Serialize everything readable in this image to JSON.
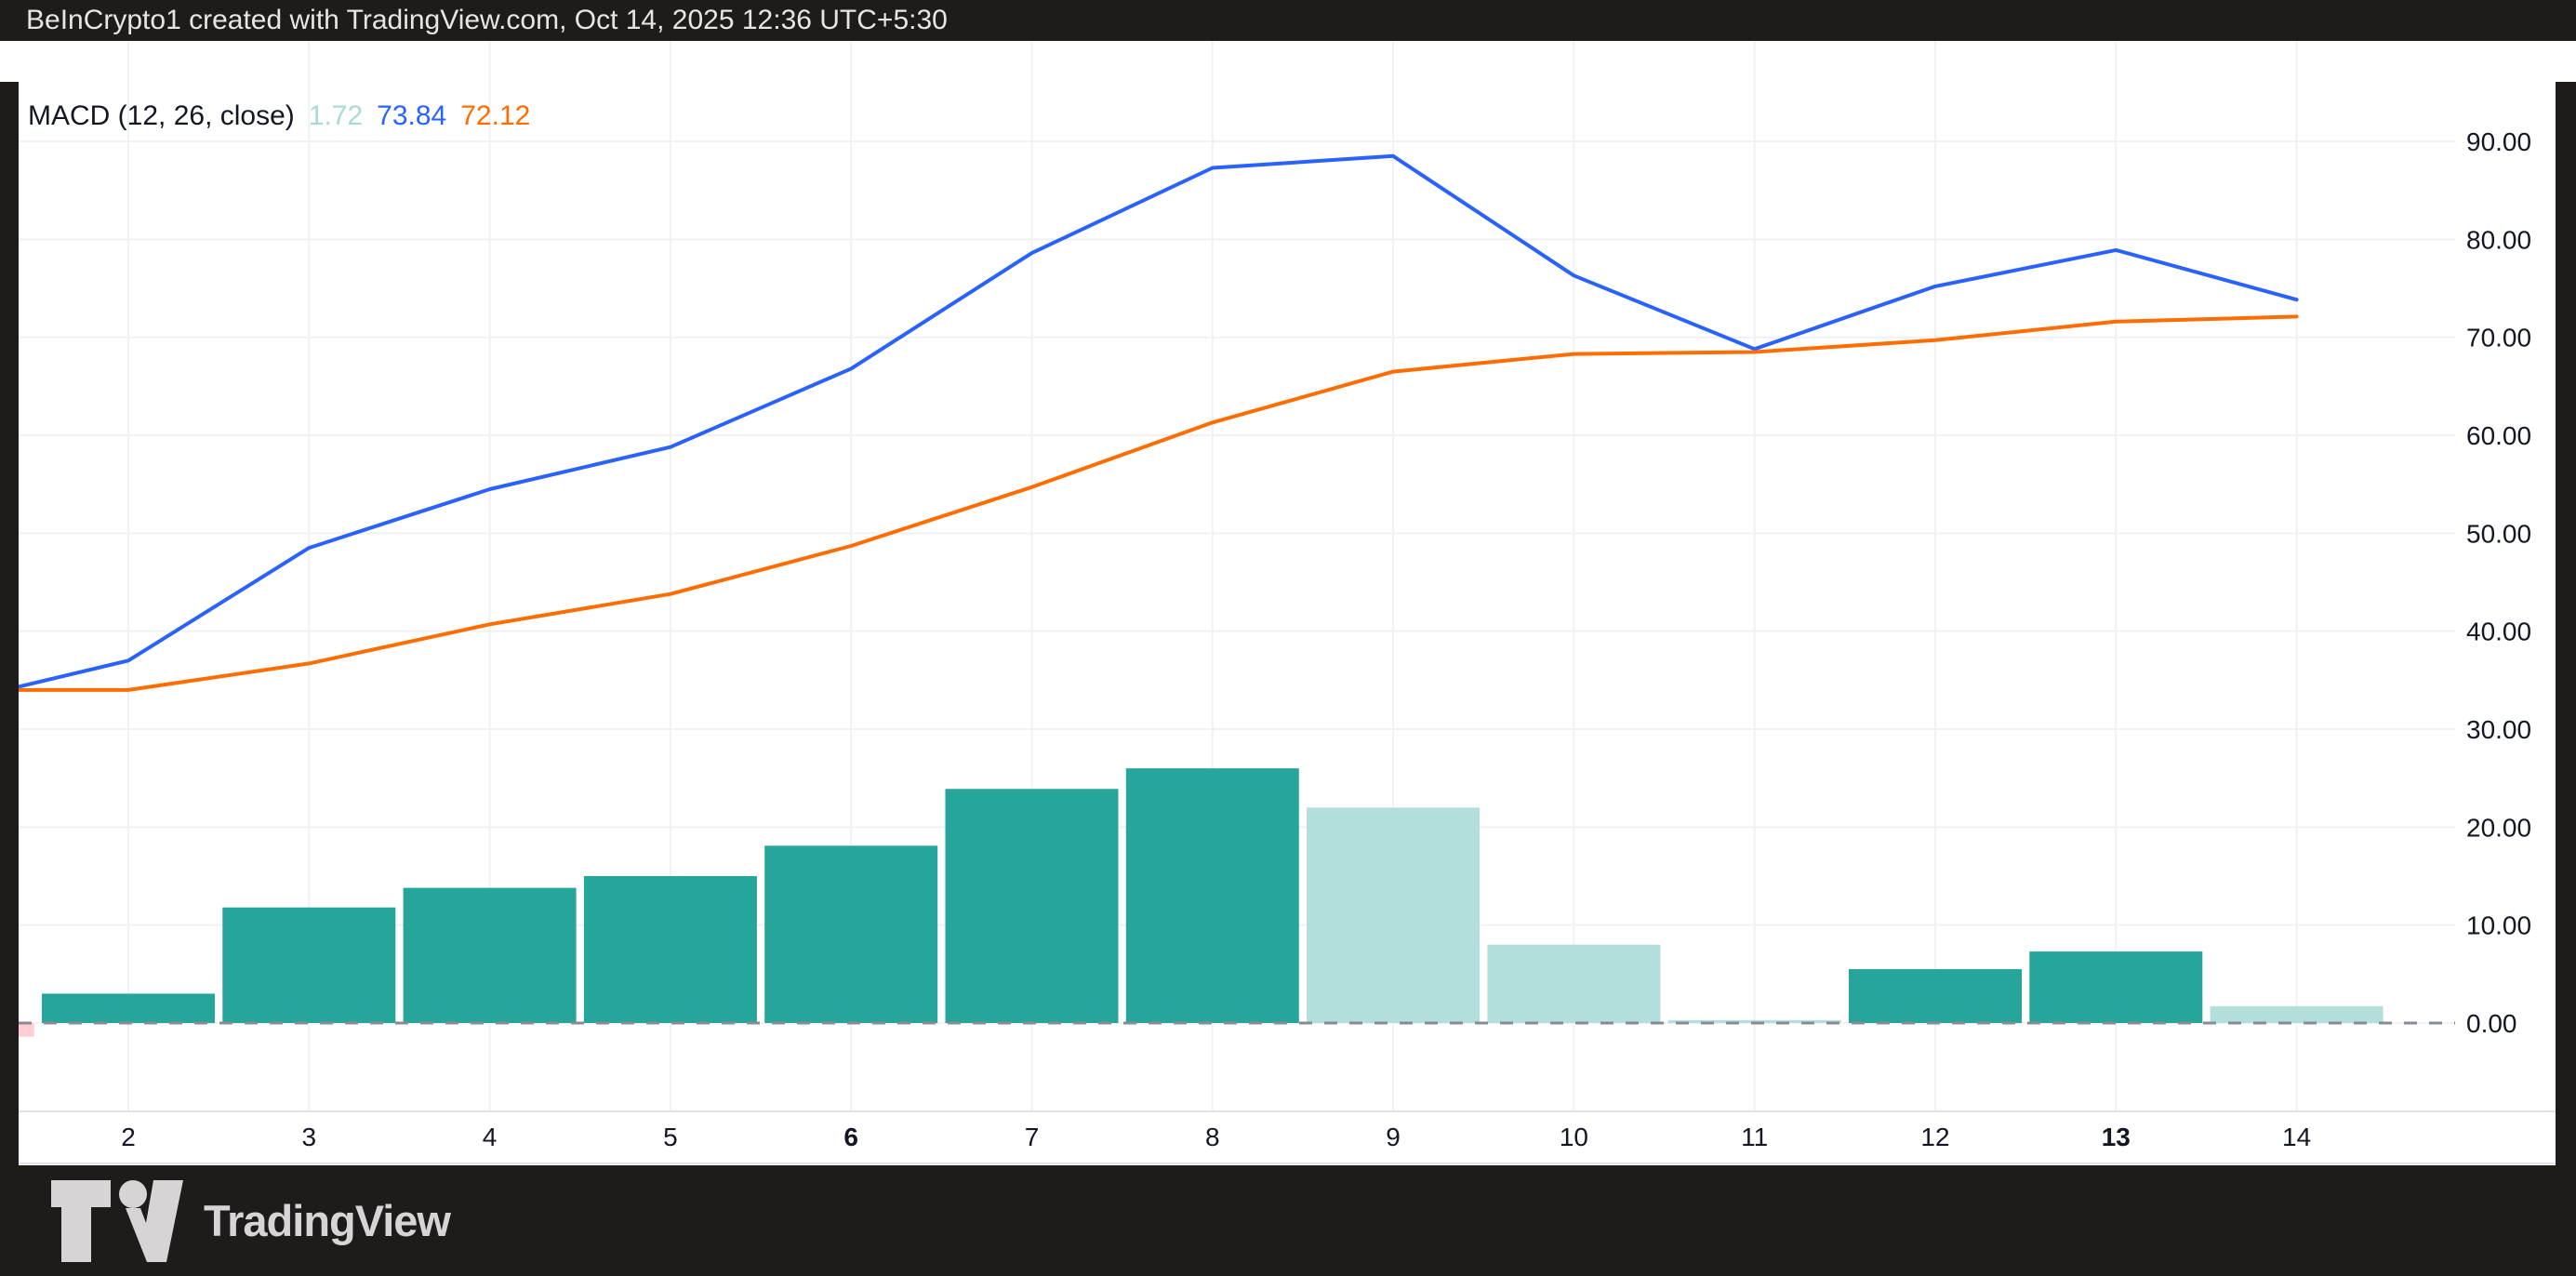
{
  "header": {
    "title": "BeInCrypto1 created with TradingView.com, Oct 14, 2025 12:36 UTC+5:30"
  },
  "legend": {
    "label": "MACD (12, 26, close)",
    "hist_value": "1.72",
    "macd_value": "73.84",
    "signal_value": "72.12"
  },
  "footer": {
    "brand": "TradingView"
  },
  "colors": {
    "macd_line": "#2962FF",
    "signal_line": "#FF6D00",
    "hist_rising": "#26A69A",
    "hist_falling": "#B2DFDB",
    "hist_negative": "#FFCDD2",
    "legend_hist_text": "#A9DAD5",
    "grid": "#F0F1F3",
    "zero_line": "#868B94",
    "separator": "#E0E3EB",
    "axis_text": "#131722",
    "frame_bg": "#1E1B1B",
    "frame_text": "#E8E6E3",
    "brand_text": "#D6D4D4",
    "pane_bg": "#FFFFFF"
  },
  "chart_data": {
    "type": "combo",
    "title": "MACD (12, 26, close)",
    "x": [
      1,
      2,
      3,
      4,
      5,
      6,
      7,
      8,
      9,
      10,
      11,
      12,
      13,
      14
    ],
    "x_ticks": [
      {
        "label": "2",
        "bold": false
      },
      {
        "label": "3",
        "bold": false
      },
      {
        "label": "4",
        "bold": false
      },
      {
        "label": "5",
        "bold": false
      },
      {
        "label": "6",
        "bold": true
      },
      {
        "label": "7",
        "bold": false
      },
      {
        "label": "8",
        "bold": false
      },
      {
        "label": "9",
        "bold": false
      },
      {
        "label": "10",
        "bold": false
      },
      {
        "label": "11",
        "bold": false
      },
      {
        "label": "12",
        "bold": false
      },
      {
        "label": "13",
        "bold": true
      },
      {
        "label": "14",
        "bold": false
      }
    ],
    "y_ticks": [
      {
        "value": 90,
        "label": "90.00"
      },
      {
        "value": 80,
        "label": "80.00"
      },
      {
        "value": 70,
        "label": "70.00"
      },
      {
        "value": 60,
        "label": "60.00"
      },
      {
        "value": 50,
        "label": "50.00"
      },
      {
        "value": 40,
        "label": "40.00"
      },
      {
        "value": 30,
        "label": "30.00"
      },
      {
        "value": 20,
        "label": "20.00"
      },
      {
        "value": 10,
        "label": "10.00"
      },
      {
        "value": 0,
        "label": "0.00"
      }
    ],
    "ylim": [
      -9,
      100.3
    ],
    "grid": true,
    "legend_position": "top-left",
    "series": [
      {
        "name": "MACD",
        "type": "line",
        "values": [
          32.6,
          37.0,
          48.5,
          54.5,
          58.8,
          66.8,
          78.6,
          87.3,
          88.5,
          76.3,
          68.8,
          75.2,
          78.9,
          73.84
        ]
      },
      {
        "name": "Signal",
        "type": "line",
        "values": [
          34.0,
          34.0,
          36.7,
          40.7,
          43.8,
          48.7,
          54.7,
          61.3,
          66.5,
          68.3,
          68.5,
          69.7,
          71.6,
          72.12
        ]
      },
      {
        "name": "Histogram",
        "type": "bar",
        "values": [
          -1.4,
          3.0,
          11.8,
          13.8,
          15.0,
          18.1,
          23.9,
          26.0,
          22.0,
          8.0,
          0.3,
          5.5,
          7.3,
          1.72
        ],
        "bar_states": [
          "negative",
          "rising",
          "rising",
          "rising",
          "rising",
          "rising",
          "rising",
          "rising",
          "falling",
          "falling",
          "falling",
          "rising",
          "rising",
          "falling"
        ]
      }
    ],
    "last_values": {
      "histogram": 1.72,
      "macd": 73.84,
      "signal": 72.12
    }
  }
}
